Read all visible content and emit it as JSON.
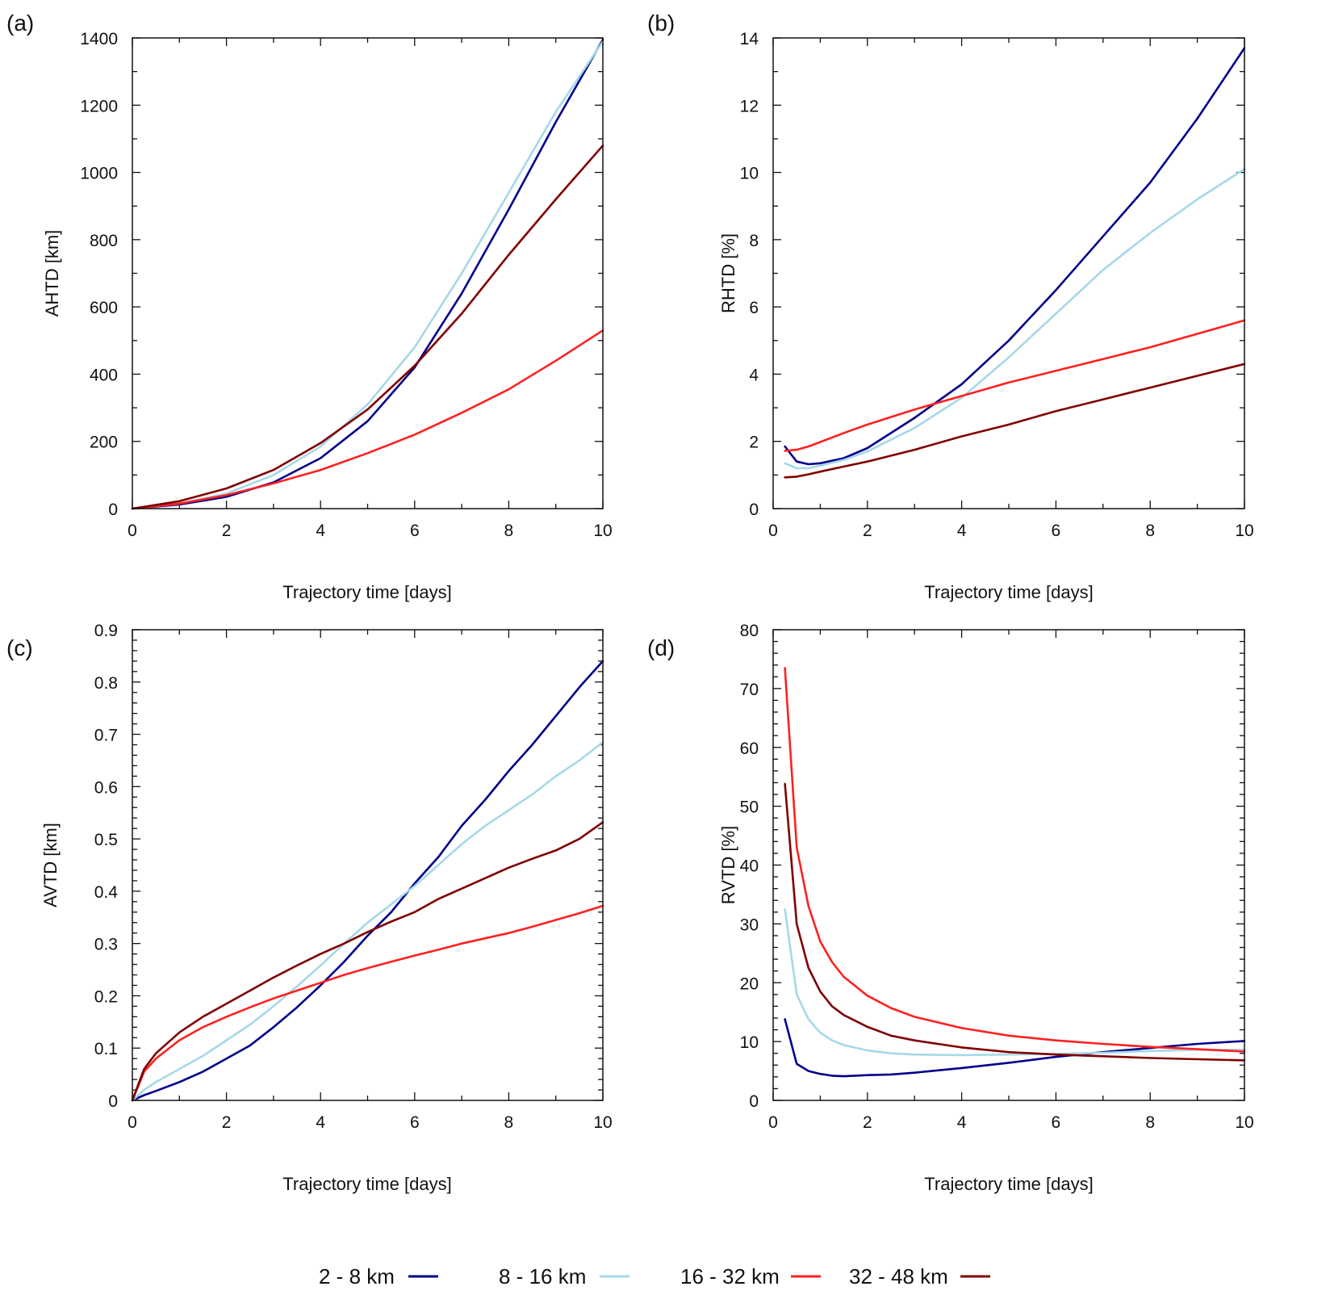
{
  "legend": {
    "items": [
      {
        "name": "2-8 km",
        "label": "2 - 8 km",
        "color": "#00008b"
      },
      {
        "name": "8-16 km",
        "label": "8 - 16 km",
        "color": "#a6d8e7"
      },
      {
        "name": "16-32 km",
        "label": "16 - 32 km",
        "color": "#ff2020"
      },
      {
        "name": "32-48 km",
        "label": "32 - 48 km",
        "color": "#800000"
      }
    ]
  },
  "chart_data": [
    {
      "panel": "(a)",
      "type": "line",
      "title": "",
      "xlabel": "Trajectory time [days]",
      "ylabel": "AHTD [km]",
      "xlim": [
        0,
        10
      ],
      "ylim": [
        0,
        1400
      ],
      "xticks": [
        0,
        2,
        4,
        6,
        8,
        10
      ],
      "yticks": [
        0,
        200,
        400,
        600,
        800,
        1000,
        1200,
        1400
      ],
      "x_minor_step": 1,
      "y_minor_step": 100,
      "x": [
        0,
        1,
        2,
        3,
        4,
        5,
        6,
        7,
        8,
        9,
        10
      ],
      "series": [
        {
          "name": "2-8 km",
          "values": [
            0,
            12,
            35,
            78,
            150,
            260,
            420,
            640,
            890,
            1150,
            1395
          ]
        },
        {
          "name": "8-16 km",
          "values": [
            0,
            15,
            45,
            100,
            185,
            310,
            480,
            700,
            940,
            1180,
            1390
          ]
        },
        {
          "name": "16-32 km",
          "values": [
            0,
            15,
            40,
            75,
            115,
            165,
            220,
            285,
            355,
            440,
            530
          ]
        },
        {
          "name": "32-48 km",
          "values": [
            0,
            22,
            60,
            115,
            195,
            295,
            425,
            580,
            755,
            920,
            1080
          ]
        }
      ]
    },
    {
      "panel": "(b)",
      "type": "line",
      "title": "",
      "xlabel": "Trajectory time [days]",
      "ylabel": "RHTD [%]",
      "xlim": [
        0,
        10
      ],
      "ylim": [
        0,
        14
      ],
      "xticks": [
        0,
        2,
        4,
        6,
        8,
        10
      ],
      "yticks": [
        0,
        2,
        4,
        6,
        8,
        10,
        12,
        14
      ],
      "x_minor_step": 1,
      "y_minor_step": 1,
      "x": [
        0.25,
        0.5,
        0.75,
        1,
        1.5,
        2,
        3,
        4,
        5,
        6,
        7,
        8,
        9,
        10
      ],
      "series": [
        {
          "name": "2-8 km",
          "values": [
            1.85,
            1.4,
            1.32,
            1.35,
            1.5,
            1.8,
            2.7,
            3.7,
            5.0,
            6.5,
            8.1,
            9.7,
            11.6,
            13.7
          ]
        },
        {
          "name": "8-16 km",
          "values": [
            1.35,
            1.2,
            1.2,
            1.28,
            1.45,
            1.7,
            2.4,
            3.3,
            4.5,
            5.8,
            7.1,
            8.2,
            9.2,
            10.1
          ]
        },
        {
          "name": "16-32 km",
          "values": [
            1.72,
            1.75,
            1.85,
            1.98,
            2.25,
            2.5,
            2.95,
            3.35,
            3.75,
            4.1,
            4.45,
            4.8,
            5.2,
            5.6
          ]
        },
        {
          "name": "32-48 km",
          "values": [
            0.93,
            0.95,
            1.02,
            1.1,
            1.25,
            1.4,
            1.75,
            2.15,
            2.5,
            2.9,
            3.25,
            3.6,
            3.95,
            4.3
          ]
        }
      ]
    },
    {
      "panel": "(c)",
      "type": "line",
      "title": "",
      "xlabel": "Trajectory time [days]",
      "ylabel": "AVTD [km]",
      "xlim": [
        0,
        10
      ],
      "ylim": [
        0,
        0.9
      ],
      "xticks": [
        0,
        2,
        4,
        6,
        8,
        10
      ],
      "yticks": [
        0,
        0.1,
        0.2,
        0.3,
        0.4,
        0.5,
        0.6,
        0.7,
        0.8,
        0.9
      ],
      "x_minor_step": 1,
      "y_minor_step": 0.02,
      "x": [
        0,
        0.25,
        0.5,
        1,
        1.5,
        2,
        2.5,
        3,
        3.5,
        4,
        4.5,
        5,
        5.5,
        6,
        6.5,
        7,
        7.5,
        8,
        8.5,
        9,
        9.5,
        10
      ],
      "series": [
        {
          "name": "2-8 km",
          "values": [
            0,
            0.01,
            0.018,
            0.035,
            0.055,
            0.08,
            0.105,
            0.14,
            0.178,
            0.22,
            0.265,
            0.315,
            0.36,
            0.415,
            0.465,
            0.525,
            0.575,
            0.63,
            0.68,
            0.735,
            0.79,
            0.84
          ]
        },
        {
          "name": "8-16 km",
          "values": [
            0,
            0.02,
            0.035,
            0.06,
            0.085,
            0.115,
            0.145,
            0.18,
            0.218,
            0.258,
            0.3,
            0.34,
            0.375,
            0.41,
            0.45,
            0.49,
            0.525,
            0.555,
            0.585,
            0.62,
            0.65,
            0.685
          ]
        },
        {
          "name": "16-32 km",
          "values": [
            0,
            0.055,
            0.08,
            0.115,
            0.14,
            0.16,
            0.178,
            0.195,
            0.21,
            0.225,
            0.24,
            0.253,
            0.265,
            0.277,
            0.288,
            0.3,
            0.31,
            0.32,
            0.332,
            0.345,
            0.358,
            0.372
          ]
        },
        {
          "name": "32-48 km",
          "values": [
            0,
            0.06,
            0.09,
            0.13,
            0.16,
            0.185,
            0.21,
            0.235,
            0.258,
            0.28,
            0.3,
            0.322,
            0.342,
            0.36,
            0.385,
            0.405,
            0.425,
            0.445,
            0.462,
            0.478,
            0.5,
            0.532
          ]
        }
      ]
    },
    {
      "panel": "(d)",
      "type": "line",
      "title": "",
      "xlabel": "Trajectory time [days]",
      "ylabel": "RVTD [%]",
      "xlim": [
        0,
        10
      ],
      "ylim": [
        0,
        80
      ],
      "xticks": [
        0,
        2,
        4,
        6,
        8,
        10
      ],
      "yticks": [
        0,
        10,
        20,
        30,
        40,
        50,
        60,
        70,
        80
      ],
      "x_minor_step": 1,
      "y_minor_step": 2,
      "x": [
        0.25,
        0.5,
        0.75,
        1,
        1.25,
        1.5,
        2,
        2.5,
        3,
        4,
        5,
        6,
        7,
        8,
        9,
        10
      ],
      "series": [
        {
          "name": "2-8 km",
          "values": [
            13.8,
            6.2,
            5.0,
            4.5,
            4.2,
            4.1,
            4.3,
            4.4,
            4.7,
            5.5,
            6.4,
            7.4,
            8.2,
            8.9,
            9.6,
            10.1
          ]
        },
        {
          "name": "8-16 km",
          "values": [
            32.5,
            18.0,
            13.8,
            11.5,
            10.2,
            9.4,
            8.5,
            8.0,
            7.8,
            7.7,
            7.8,
            7.9,
            8.1,
            8.4,
            8.6,
            8.6
          ]
        },
        {
          "name": "16-32 km",
          "values": [
            73.5,
            43.0,
            33.0,
            27.0,
            23.5,
            21.0,
            17.8,
            15.7,
            14.2,
            12.3,
            11.0,
            10.2,
            9.6,
            9.1,
            8.7,
            8.3
          ]
        },
        {
          "name": "32-48 km",
          "values": [
            53.8,
            30.0,
            22.5,
            18.5,
            16.0,
            14.5,
            12.5,
            11.0,
            10.2,
            9.0,
            8.2,
            7.8,
            7.5,
            7.2,
            7.0,
            6.8
          ]
        }
      ]
    }
  ]
}
